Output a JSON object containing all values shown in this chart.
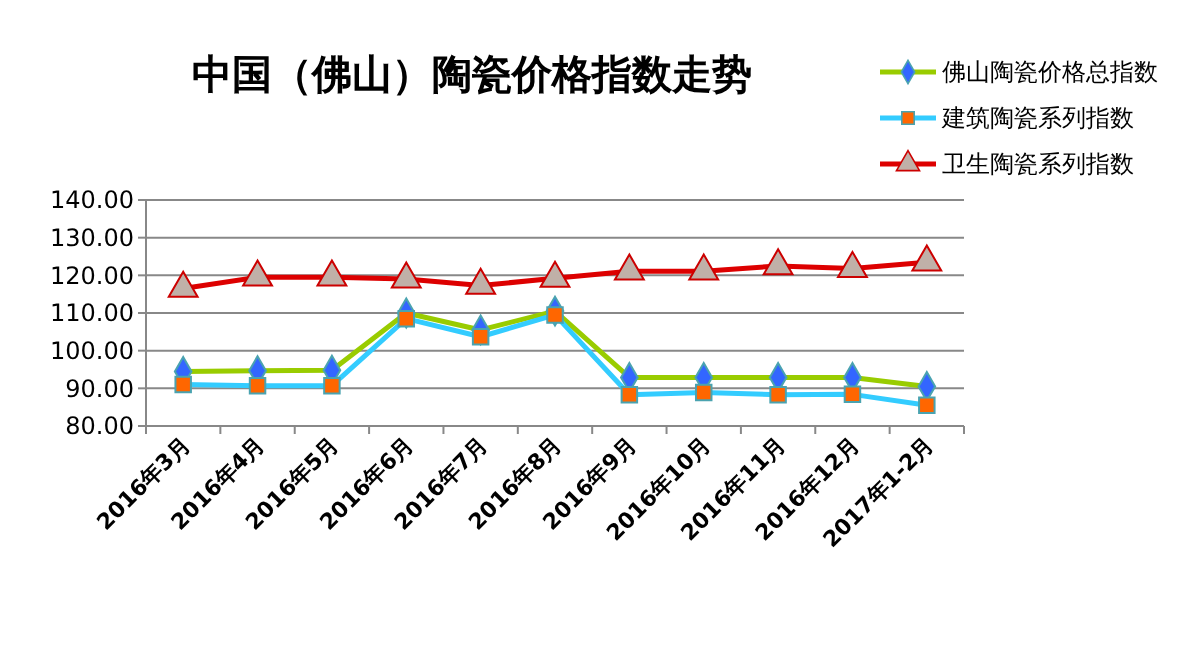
{
  "chart_data": {
    "type": "line",
    "title": "中国（佛山）陶瓷价格指数走势",
    "categories": [
      "2016年3月",
      "2016年4月",
      "2016年5月",
      "2016年6月",
      "2016年7月",
      "2016年8月",
      "2016年9月",
      "2016年10月",
      "2016年11月",
      "2016年12月",
      "2017年1-2月"
    ],
    "series": [
      {
        "name": "佛山陶瓷价格总指数",
        "color": "#99cc00",
        "marker": "diamond",
        "values": [
          94.5,
          94.7,
          94.8,
          110,
          105.5,
          110.5,
          92.9,
          92.9,
          92.9,
          92.9,
          90.5
        ]
      },
      {
        "name": "建筑陶瓷系列指数",
        "color": "#33ccff",
        "marker": "square",
        "values": [
          91,
          90.7,
          90.7,
          108.5,
          103.7,
          109.5,
          88.3,
          88.9,
          88.3,
          88.4,
          85.5
        ]
      },
      {
        "name": "卫生陶瓷系列指数",
        "color": "#dd0000",
        "marker": "triangle",
        "values": [
          116.5,
          119.5,
          119.5,
          119,
          117.3,
          119.2,
          121.1,
          121.1,
          122.5,
          121.8,
          123.5
        ]
      }
    ],
    "ylim": [
      80,
      140
    ],
    "yticks": [
      {
        "value": 80,
        "label": "80.00"
      },
      {
        "value": 90,
        "label": "90.00"
      },
      {
        "value": 100,
        "label": "100.00"
      },
      {
        "value": 110,
        "label": "110.00"
      },
      {
        "value": 120,
        "label": "120.00"
      },
      {
        "value": 130,
        "label": "130.00"
      },
      {
        "value": 140,
        "label": "140.00"
      }
    ],
    "grid": "y",
    "legend": "top right"
  }
}
